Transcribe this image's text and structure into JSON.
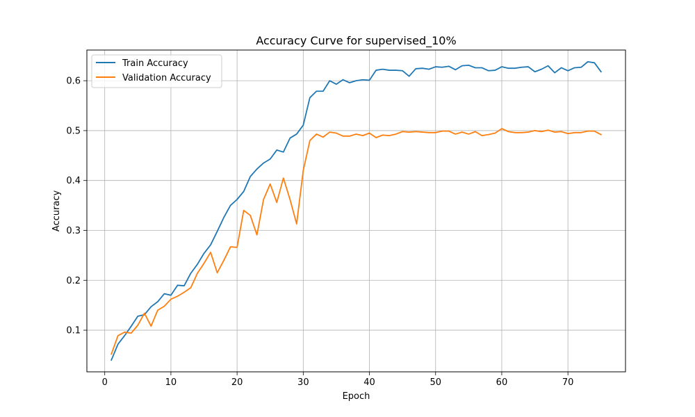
{
  "chart_data": {
    "type": "line",
    "title": "Accuracy Curve for supervised_10%",
    "xlabel": "Epoch",
    "ylabel": "Accuracy",
    "xlim": [
      -2.7,
      78.7
    ],
    "ylim": [
      0.0165,
      0.6615
    ],
    "xticks": [
      0,
      10,
      20,
      30,
      40,
      50,
      60,
      70
    ],
    "yticks": [
      0.1,
      0.2,
      0.3,
      0.4,
      0.5,
      0.6
    ],
    "xtick_labels": [
      "0",
      "10",
      "20",
      "30",
      "40",
      "50",
      "60",
      "70"
    ],
    "ytick_labels": [
      "0.1",
      "0.2",
      "0.3",
      "0.4",
      "0.5",
      "0.6"
    ],
    "grid": true,
    "legend_position": "upper-left",
    "x": [
      1,
      2,
      3,
      4,
      5,
      6,
      7,
      8,
      9,
      10,
      11,
      12,
      13,
      14,
      15,
      16,
      17,
      18,
      19,
      20,
      21,
      22,
      23,
      24,
      25,
      26,
      27,
      28,
      29,
      30,
      31,
      32,
      33,
      34,
      35,
      36,
      37,
      38,
      39,
      40,
      41,
      42,
      43,
      44,
      45,
      46,
      47,
      48,
      49,
      50,
      51,
      52,
      53,
      54,
      55,
      56,
      57,
      58,
      59,
      60,
      61,
      62,
      63,
      64,
      65,
      66,
      67,
      68,
      69,
      70,
      71,
      72,
      73,
      74,
      75
    ],
    "series": [
      {
        "name": "Train Accuracy",
        "color": "#1f77b4",
        "values": [
          0.04,
          0.072,
          0.089,
          0.108,
          0.128,
          0.131,
          0.147,
          0.157,
          0.173,
          0.17,
          0.19,
          0.189,
          0.214,
          0.232,
          0.254,
          0.271,
          0.298,
          0.326,
          0.35,
          0.362,
          0.378,
          0.408,
          0.423,
          0.435,
          0.443,
          0.461,
          0.457,
          0.485,
          0.493,
          0.511,
          0.566,
          0.579,
          0.579,
          0.6,
          0.593,
          0.602,
          0.596,
          0.6,
          0.602,
          0.601,
          0.621,
          0.623,
          0.621,
          0.621,
          0.62,
          0.609,
          0.624,
          0.625,
          0.623,
          0.628,
          0.627,
          0.629,
          0.622,
          0.63,
          0.631,
          0.626,
          0.626,
          0.62,
          0.621,
          0.628,
          0.625,
          0.625,
          0.627,
          0.628,
          0.618,
          0.623,
          0.63,
          0.616,
          0.626,
          0.62,
          0.626,
          0.627,
          0.638,
          0.636,
          0.618
        ]
      },
      {
        "name": "Validation Accuracy",
        "color": "#ff7f0e",
        "values": [
          0.052,
          0.089,
          0.096,
          0.094,
          0.11,
          0.134,
          0.108,
          0.14,
          0.148,
          0.162,
          0.168,
          0.176,
          0.185,
          0.214,
          0.234,
          0.256,
          0.215,
          0.24,
          0.267,
          0.266,
          0.34,
          0.33,
          0.291,
          0.362,
          0.393,
          0.356,
          0.405,
          0.362,
          0.313,
          0.42,
          0.48,
          0.493,
          0.487,
          0.497,
          0.495,
          0.489,
          0.489,
          0.493,
          0.49,
          0.495,
          0.486,
          0.491,
          0.49,
          0.493,
          0.498,
          0.497,
          0.498,
          0.497,
          0.496,
          0.496,
          0.499,
          0.499,
          0.493,
          0.497,
          0.493,
          0.498,
          0.49,
          0.492,
          0.495,
          0.504,
          0.498,
          0.496,
          0.496,
          0.497,
          0.5,
          0.498,
          0.501,
          0.497,
          0.498,
          0.494,
          0.496,
          0.496,
          0.499,
          0.499,
          0.492
        ]
      }
    ]
  }
}
